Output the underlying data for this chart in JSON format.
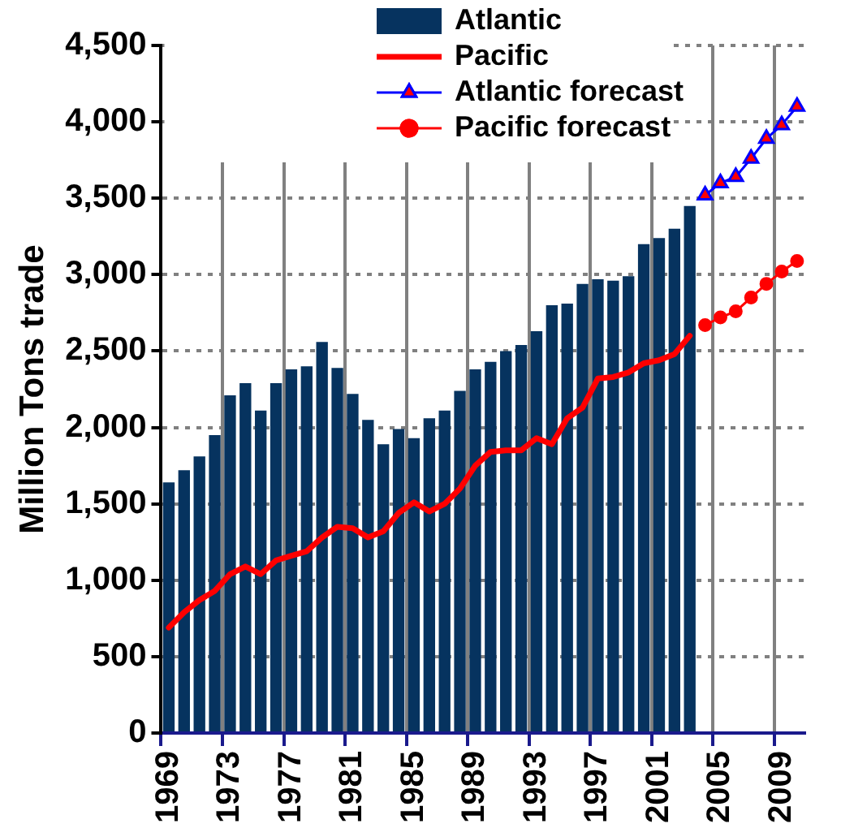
{
  "chart_data": {
    "type": "bar",
    "ylabel": "Million Tons trade",
    "categories": [
      "1969",
      null,
      null,
      null,
      "1973",
      null,
      null,
      null,
      "1977",
      null,
      null,
      null,
      "1981",
      null,
      null,
      null,
      "1985",
      null,
      null,
      null,
      "1989",
      null,
      null,
      null,
      "1993",
      null,
      null,
      null,
      "1997",
      null,
      null,
      null,
      "2001",
      null,
      null,
      null,
      "2005",
      null,
      null,
      null,
      "2009",
      null
    ],
    "series": [
      {
        "name": "Atlantic",
        "color": "#06335f",
        "values": [
          1640,
          1720,
          1810,
          1950,
          2210,
          2290,
          2110,
          2290,
          2380,
          2400,
          2560,
          2390,
          2220,
          2050,
          1890,
          1990,
          1930,
          2060,
          2110,
          2240,
          2380,
          2430,
          2500,
          2540,
          2630,
          2800,
          2810,
          2940,
          2970,
          2960,
          2990,
          3200,
          3240,
          3300,
          3450,
          null,
          null,
          null,
          null,
          null,
          null,
          null
        ]
      },
      {
        "name": "Pacific",
        "type": "line",
        "color": "#ff0000",
        "marker": "none",
        "values": [
          690,
          790,
          870,
          930,
          1040,
          1090,
          1040,
          1130,
          1160,
          1190,
          1280,
          1350,
          1340,
          1280,
          1320,
          1440,
          1510,
          1450,
          1500,
          1600,
          1750,
          1840,
          1850,
          1850,
          1930,
          1890,
          2060,
          2130,
          2320,
          2330,
          2360,
          2420,
          2440,
          2480,
          2600,
          null,
          null,
          null,
          null,
          null,
          null,
          null
        ]
      },
      {
        "name": "Atlantic forecast",
        "type": "line",
        "color": "#0000ff",
        "marker": "triangle",
        "values": [
          null,
          null,
          null,
          null,
          null,
          null,
          null,
          null,
          null,
          null,
          null,
          null,
          null,
          null,
          null,
          null,
          null,
          null,
          null,
          null,
          null,
          null,
          null,
          null,
          null,
          null,
          null,
          null,
          null,
          null,
          null,
          null,
          null,
          null,
          null,
          3520,
          3600,
          3640,
          3760,
          3890,
          3980,
          4100
        ]
      },
      {
        "name": "Pacific forecast",
        "type": "line",
        "color": "#ff0000",
        "marker": "circle",
        "values": [
          null,
          null,
          null,
          null,
          null,
          null,
          null,
          null,
          null,
          null,
          null,
          null,
          null,
          null,
          null,
          null,
          null,
          null,
          null,
          null,
          null,
          null,
          null,
          null,
          null,
          null,
          null,
          null,
          null,
          null,
          null,
          null,
          null,
          null,
          null,
          2670,
          2720,
          2760,
          2850,
          2940,
          3020,
          3090
        ]
      }
    ],
    "ylim": [
      0,
      4500
    ],
    "yticks": [
      {
        "value": 0,
        "label": "0"
      },
      {
        "value": 500,
        "label": "500"
      },
      {
        "value": 1000,
        "label": "1,000"
      },
      {
        "value": 1500,
        "label": "1,500"
      },
      {
        "value": 2000,
        "label": "2,000"
      },
      {
        "value": 2500,
        "label": "2,500"
      },
      {
        "value": 3000,
        "label": "3,000"
      },
      {
        "value": 3500,
        "label": "3,500"
      },
      {
        "value": 4000,
        "label": "4,000"
      },
      {
        "value": 4500,
        "label": "4,500"
      }
    ],
    "grid": true,
    "legend": "top",
    "line_style": "solid"
  }
}
